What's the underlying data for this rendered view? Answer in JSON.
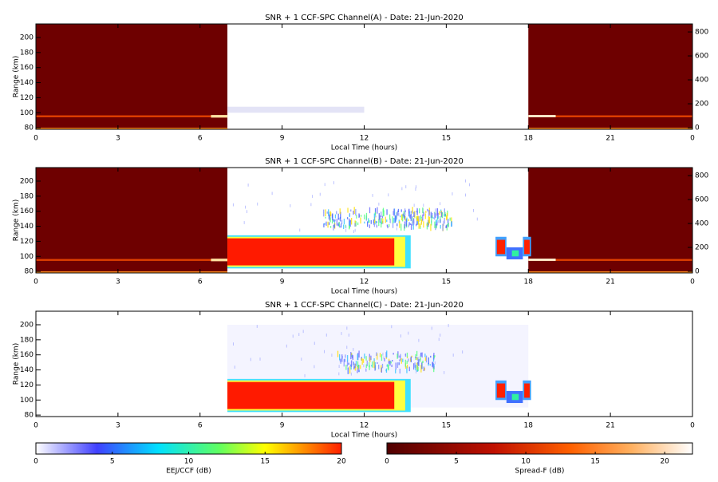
{
  "chart_data": [
    {
      "type": "heatmap",
      "title": "SNR + 1 CCF-SPC Channel(A) - Date: 21-Jun-2020",
      "x_label": "Local Time (hours)",
      "y_label": "Range (km)",
      "xlim": [
        0,
        24
      ],
      "xticks": [
        0,
        3,
        6,
        9,
        12,
        15,
        18,
        21,
        {
          "value": 24,
          "label": "0"
        }
      ],
      "ylim": [
        78,
        218
      ],
      "yticks": [
        80,
        100,
        120,
        140,
        160,
        180,
        200
      ],
      "y2lim": [
        -13,
        867
      ],
      "y2ticks": [
        0,
        200,
        400,
        600,
        800
      ]
    },
    {
      "type": "heatmap",
      "title": "SNR + 1 CCF-SPC Channel(B) - Date: 21-Jun-2020",
      "x_label": "Local Time (hours)",
      "y_label": "Range (km)",
      "xlim": [
        0,
        24
      ],
      "xticks": [
        0,
        3,
        6,
        9,
        12,
        15,
        18,
        21,
        {
          "value": 24,
          "label": "0"
        }
      ],
      "ylim": [
        78,
        218
      ],
      "yticks": [
        80,
        100,
        120,
        140,
        160,
        180,
        200
      ],
      "y2lim": [
        -13,
        867
      ],
      "y2ticks": [
        0,
        200,
        400,
        600,
        800
      ]
    },
    {
      "type": "heatmap",
      "title": "SNR + 1 CCF-SPC Channel(C) - Date: 21-Jun-2020",
      "x_label": "Local Time (hours)",
      "y_label": "Range (km)",
      "xlim": [
        0,
        24
      ],
      "xticks": [
        0,
        3,
        6,
        9,
        12,
        15,
        18,
        21,
        {
          "value": 24,
          "label": "0"
        }
      ],
      "ylim": [
        78,
        218
      ],
      "yticks": [
        80,
        100,
        120,
        140,
        160,
        180,
        200
      ]
    }
  ],
  "colorbars": [
    {
      "label": "EEJ/CCF (dB)",
      "lim": [
        0,
        20
      ],
      "ticks": [
        0,
        5,
        10,
        15,
        20
      ]
    },
    {
      "label": "Spread-F (dB)",
      "lim": [
        0,
        22
      ],
      "ticks": [
        0,
        5,
        10,
        15,
        20
      ]
    }
  ]
}
